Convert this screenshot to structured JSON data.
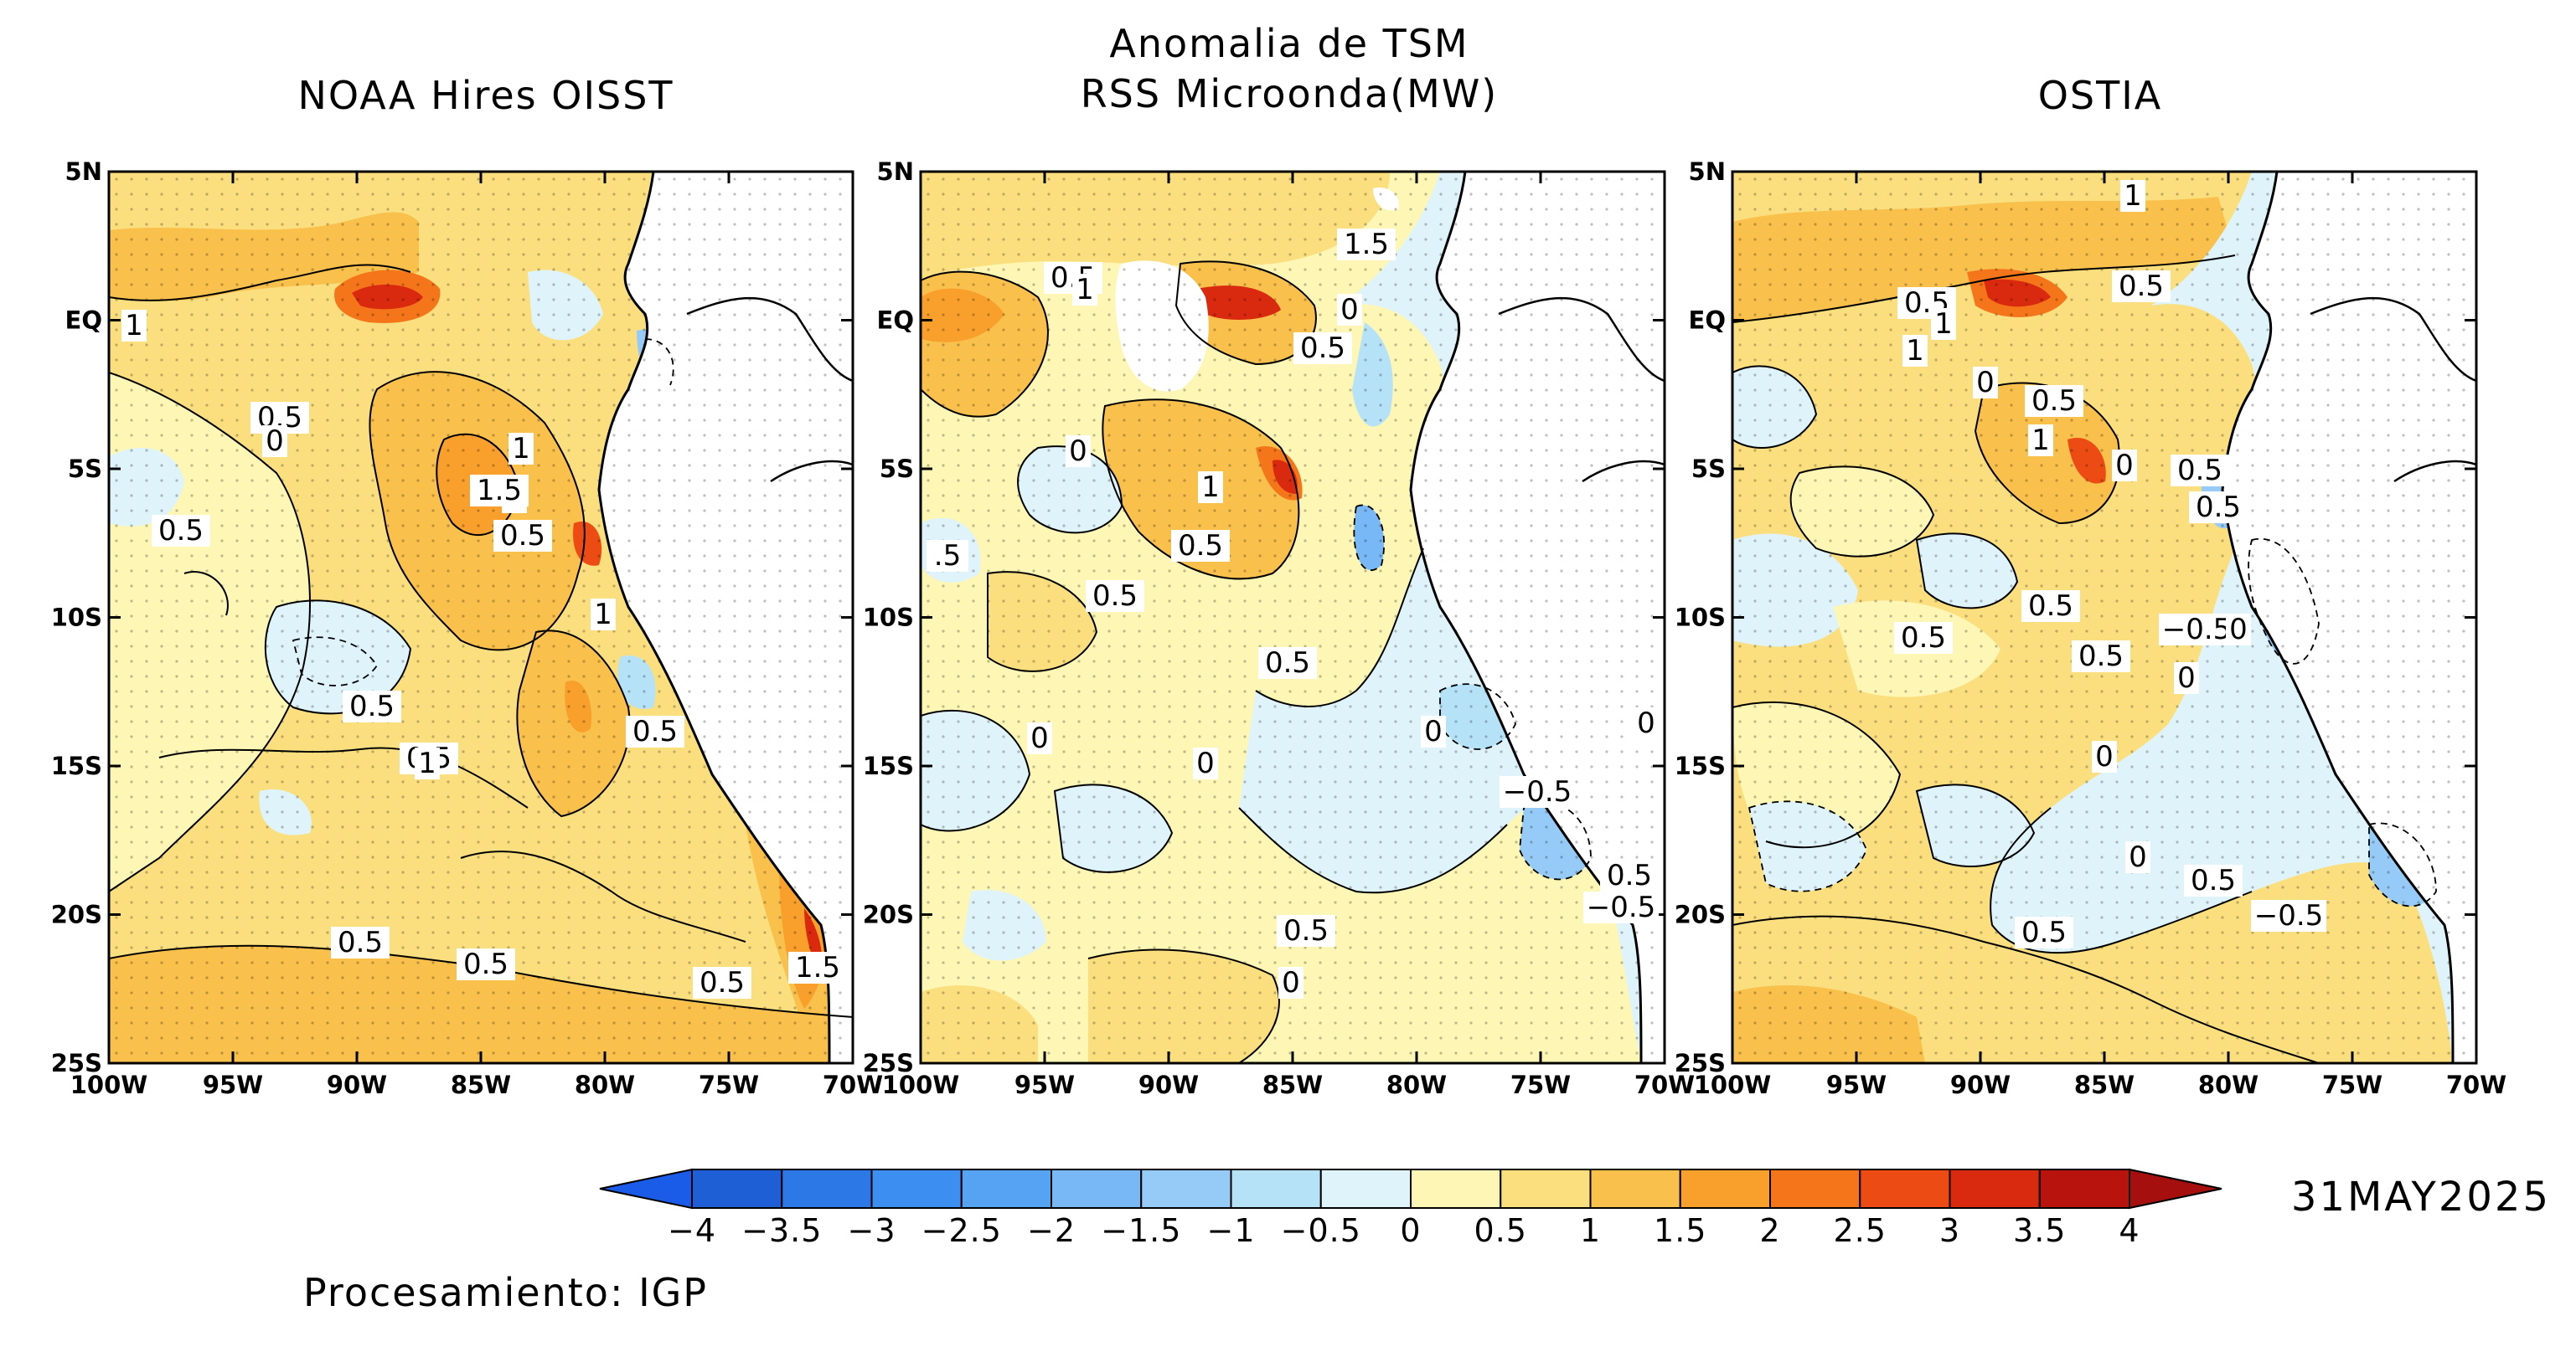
{
  "header": {
    "main_title": "Anomalia de TSM",
    "center_subtitle": "RSS Microonda(MW)"
  },
  "panels": [
    {
      "id": "oisst",
      "title": "NOAA Hires OISST",
      "contour_labels": [
        "1",
        "0.5",
        "0",
        "0.5",
        "1",
        "1",
        "1.5",
        "0.5",
        "0.5",
        "0.5",
        "1",
        "0.5",
        "0.5",
        "1",
        "0.5",
        "0.5",
        "1.5"
      ]
    },
    {
      "id": "rss",
      "title": "",
      "contour_labels": [
        "0.5",
        "1",
        "1.5",
        "0",
        "0.5",
        "0",
        "1",
        "0.5",
        "0.5",
        "0.5",
        "0",
        "0",
        "0",
        "−0.5",
        "0",
        "0.5",
        "−0.5",
        "0.5",
        "0",
        ".5"
      ]
    },
    {
      "id": "ostia",
      "title": "OSTIA",
      "contour_labels": [
        "1",
        "0.5",
        "0.5",
        "1",
        "1",
        "0",
        "0.5",
        "1",
        "0",
        "0.5",
        "0.5",
        "0.5",
        "0.5",
        "0.5",
        "−0.5",
        "0",
        "0",
        "0",
        "0",
        "0.5",
        "−0.5",
        "0.5"
      ]
    }
  ],
  "axes": {
    "lat_ticks": [
      "5N",
      "EQ",
      "5S",
      "10S",
      "15S",
      "20S",
      "25S"
    ],
    "lon_ticks": [
      "100W",
      "95W",
      "90W",
      "85W",
      "80W",
      "75W",
      "70W"
    ],
    "lat_range": [
      -25,
      5
    ],
    "lon_range": [
      -100,
      -70
    ],
    "grid": "dotted"
  },
  "colorbar": {
    "ticks": [
      "−4",
      "−3.5",
      "−3",
      "−2.5",
      "−2",
      "−1.5",
      "−1",
      "−0.5",
      "0",
      "0.5",
      "1",
      "1.5",
      "2",
      "2.5",
      "3",
      "3.5",
      "4"
    ],
    "colors": [
      "#1f5fd6",
      "#2b78e6",
      "#3c8ff0",
      "#56a3f3",
      "#78b8f6",
      "#97cbf7",
      "#b6e2f8",
      "#dff4fa",
      "#fdf6b4",
      "#fbdf7e",
      "#f9c04c",
      "#f89f2c",
      "#f5761a",
      "#ec4c14",
      "#d92a10",
      "#b8140d"
    ],
    "under_color": "#1a5ce8",
    "over_color": "#a50f0d"
  },
  "date_label": "31MAY2025",
  "footer": {
    "processing": "Procesamiento: IGP"
  }
}
